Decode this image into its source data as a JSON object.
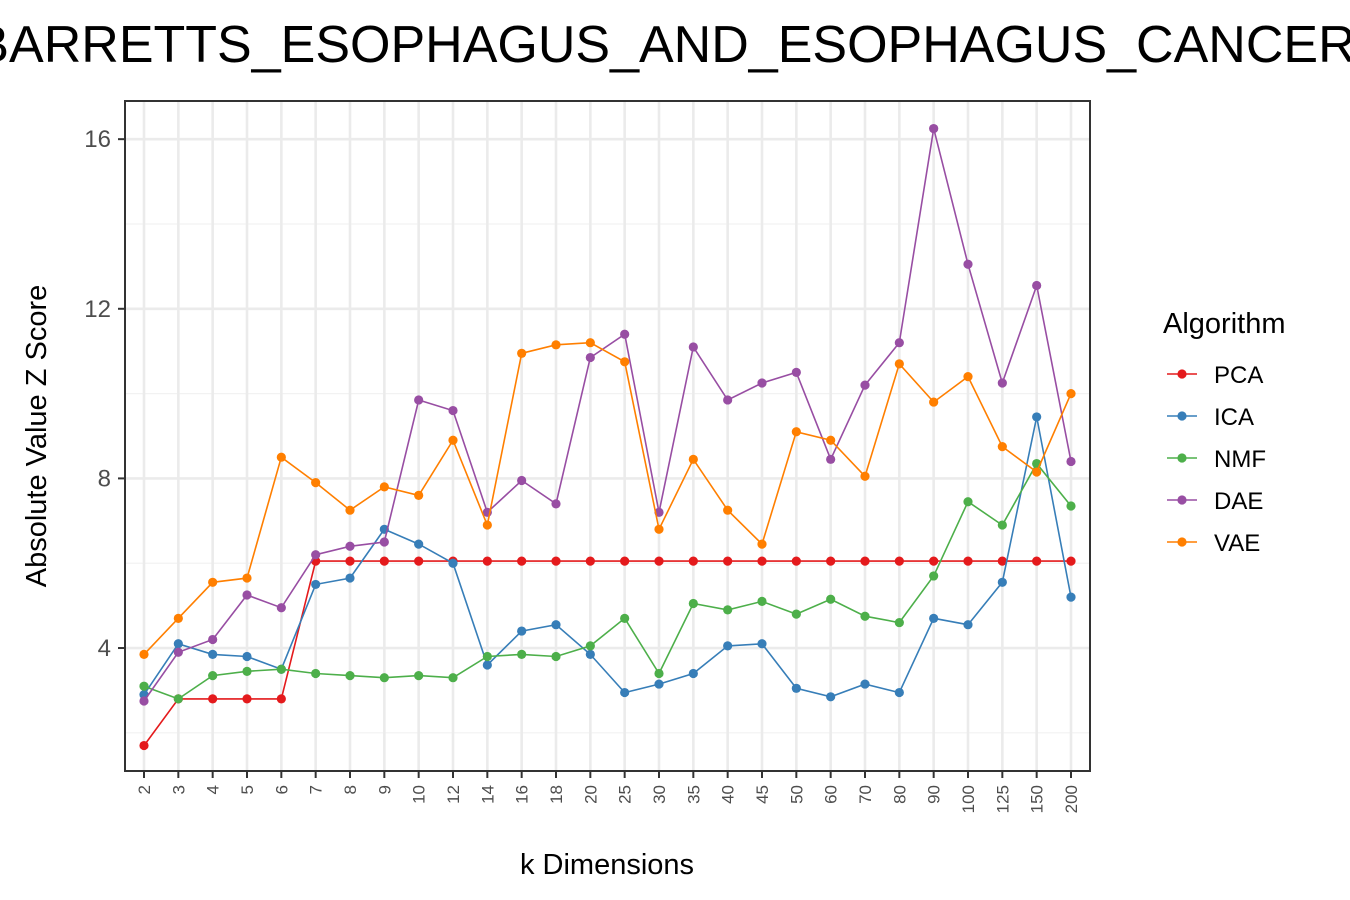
{
  "chart_data": {
    "type": "line",
    "title": "BARRETTS_ESOPHAGUS_AND_ESOPHAGUS_CANCER",
    "xlabel": "k Dimensions",
    "ylabel": "Absolute Value Z Score",
    "categories": [
      "2",
      "3",
      "4",
      "5",
      "6",
      "7",
      "8",
      "9",
      "10",
      "12",
      "14",
      "16",
      "18",
      "20",
      "25",
      "30",
      "35",
      "40",
      "45",
      "50",
      "60",
      "70",
      "80",
      "90",
      "100",
      "125",
      "150",
      "200"
    ],
    "ylim": [
      1.1,
      16.9
    ],
    "yticks": [
      4,
      8,
      12,
      16
    ],
    "grid": true,
    "legend": {
      "title": "Algorithm",
      "position": "right"
    },
    "series": [
      {
        "name": "PCA",
        "color": "#e41a1c",
        "values": [
          1.7,
          2.8,
          2.8,
          2.8,
          2.8,
          6.05,
          6.05,
          6.05,
          6.05,
          6.05,
          6.05,
          6.05,
          6.05,
          6.05,
          6.05,
          6.05,
          6.05,
          6.05,
          6.05,
          6.05,
          6.05,
          6.05,
          6.05,
          6.05,
          6.05,
          6.05,
          6.05,
          6.05
        ]
      },
      {
        "name": "ICA",
        "color": "#377eb8",
        "values": [
          2.9,
          4.1,
          3.85,
          3.8,
          3.5,
          5.5,
          5.65,
          6.8,
          6.45,
          6.0,
          3.6,
          4.4,
          4.55,
          3.85,
          2.95,
          3.15,
          3.4,
          4.05,
          4.1,
          3.05,
          2.85,
          3.15,
          2.95,
          4.7,
          4.55,
          5.55,
          9.45,
          5.2
        ]
      },
      {
        "name": "NMF",
        "color": "#4daf4a",
        "values": [
          3.1,
          2.8,
          3.35,
          3.45,
          3.5,
          3.4,
          3.35,
          3.3,
          3.35,
          3.3,
          3.8,
          3.85,
          3.8,
          4.05,
          4.7,
          3.4,
          5.05,
          4.9,
          5.1,
          4.8,
          5.15,
          4.75,
          4.6,
          5.7,
          7.45,
          6.9,
          8.35,
          7.35
        ]
      },
      {
        "name": "DAE",
        "color": "#984ea3",
        "values": [
          2.75,
          3.9,
          4.2,
          5.25,
          4.95,
          6.2,
          6.4,
          6.5,
          9.85,
          9.6,
          7.2,
          7.95,
          7.4,
          10.85,
          11.4,
          7.2,
          11.1,
          9.85,
          10.25,
          10.5,
          8.45,
          10.2,
          11.2,
          16.25,
          13.05,
          10.25,
          12.55,
          8.4
        ]
      },
      {
        "name": "VAE",
        "color": "#ff7f00",
        "values": [
          3.85,
          4.7,
          5.55,
          5.65,
          8.5,
          7.9,
          7.25,
          7.8,
          7.6,
          8.9,
          6.9,
          10.95,
          11.15,
          11.2,
          10.75,
          6.8,
          8.45,
          7.25,
          6.45,
          9.1,
          8.9,
          8.05,
          10.7,
          9.8,
          10.4,
          8.75,
          8.15,
          10.0
        ]
      }
    ]
  }
}
